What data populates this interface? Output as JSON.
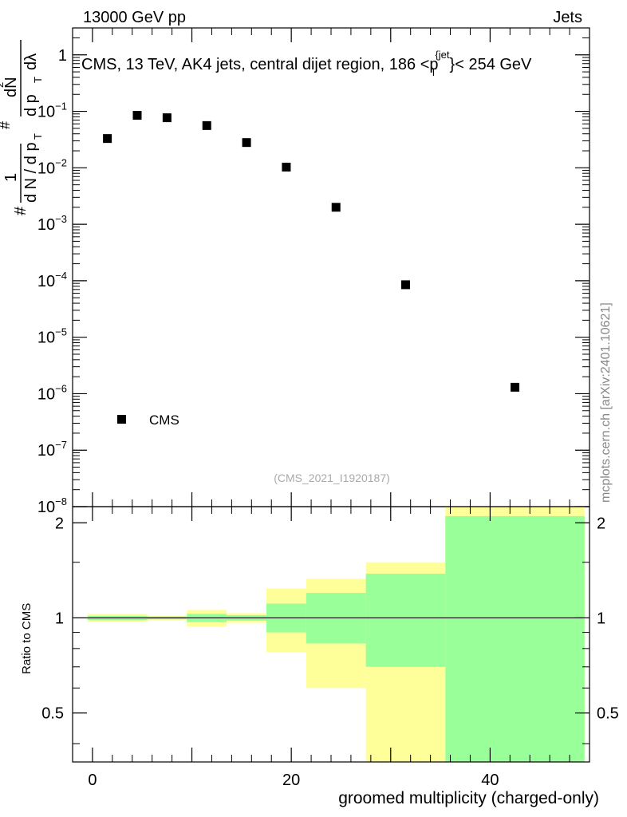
{
  "chart_data": [
    {
      "type": "scatter",
      "panel": "main",
      "title": "CMS, 13 TeV, AK4 jets, central dijet region, 186 <p_T^{jet}< 254 GeV",
      "title_parts": {
        "pre": "CMS, 13 TeV, AK4 jets, central dijet region, 186 <p",
        "sub": "T",
        "sup": "{jet",
        "post": "}< 254 GeV"
      },
      "header_left": "13000 GeV pp",
      "header_right": "Jets",
      "watermark": "(CMS_2021_I1920187)",
      "side_label": "mcplots.cern.ch [arXiv:2401.10621]",
      "ylabel": "1/(dN/dp_T) d²N/(dp_T dλ)",
      "ylabel_parts": {
        "hash": "#",
        "one": "1",
        "denom": "d N / d p",
        "sub": "T",
        "num": "dN",
        "sup2": "2",
        "den2": "d p",
        "dlambda": "dλ"
      },
      "yscale": "log",
      "ylim": [
        1e-08,
        3
      ],
      "xlim": [
        -2,
        50
      ],
      "yticks": [
        {
          "value": 1,
          "base": "1",
          "exp": ""
        },
        {
          "value": 0.1,
          "base": "10",
          "exp": "−1"
        },
        {
          "value": 0.01,
          "base": "10",
          "exp": "−2"
        },
        {
          "value": 0.001,
          "base": "10",
          "exp": "−3"
        },
        {
          "value": 0.0001,
          "base": "10",
          "exp": "−4"
        },
        {
          "value": 1e-05,
          "base": "10",
          "exp": "−5"
        },
        {
          "value": 1e-06,
          "base": "10",
          "exp": "−6"
        },
        {
          "value": 1e-07,
          "base": "10",
          "exp": "−7"
        },
        {
          "value": 1e-08,
          "base": "10",
          "exp": "−8"
        }
      ],
      "legend": {
        "placement": "bottom-left",
        "entries": [
          "CMS"
        ]
      },
      "series": [
        {
          "name": "CMS",
          "x": [
            1.5,
            4.5,
            7.5,
            11.5,
            15.5,
            19.5,
            24.5,
            31.5,
            42.5
          ],
          "y": [
            0.033,
            0.085,
            0.077,
            0.056,
            0.028,
            0.0103,
            0.002,
            8.5e-05,
            1.3e-06
          ]
        }
      ]
    },
    {
      "type": "area",
      "panel": "ratio",
      "ylabel": "Ratio to CMS",
      "xlabel": "groomed multiplicity (charged-only)",
      "xlim": [
        -2,
        50
      ],
      "ylim": [
        0.35,
        2.25
      ],
      "xticks": [
        0,
        20,
        40
      ],
      "yticks": [
        0.5,
        1,
        2
      ],
      "reference_line": 1,
      "bins": [
        {
          "lo": -0.5,
          "hi": 5.5,
          "yellow": [
            0.97,
            1.03
          ],
          "green": [
            0.985,
            1.015
          ]
        },
        {
          "lo": 5.5,
          "hi": 9.5,
          "yellow": [
            0.985,
            1.015
          ],
          "green": [
            0.99,
            1.01
          ]
        },
        {
          "lo": 9.5,
          "hi": 13.5,
          "yellow": [
            0.94,
            1.06
          ],
          "green": [
            0.97,
            1.03
          ]
        },
        {
          "lo": 13.5,
          "hi": 17.5,
          "yellow": [
            0.965,
            1.035
          ],
          "green": [
            0.98,
            1.02
          ]
        },
        {
          "lo": 17.5,
          "hi": 21.5,
          "yellow": [
            0.78,
            1.24
          ],
          "green": [
            0.9,
            1.11
          ]
        },
        {
          "lo": 21.5,
          "hi": 27.5,
          "yellow": [
            0.6,
            1.33
          ],
          "green": [
            0.83,
            1.2
          ]
        },
        {
          "lo": 27.5,
          "hi": 35.5,
          "yellow": [
            0.35,
            1.5
          ],
          "green": [
            0.7,
            1.38
          ]
        },
        {
          "lo": 35.5,
          "hi": 49.5,
          "yellow": [
            0.35,
            2.25
          ],
          "green": [
            0.35,
            2.1
          ]
        }
      ],
      "colors": {
        "yellow": "#ffff99",
        "green": "#99ff99"
      }
    }
  ]
}
